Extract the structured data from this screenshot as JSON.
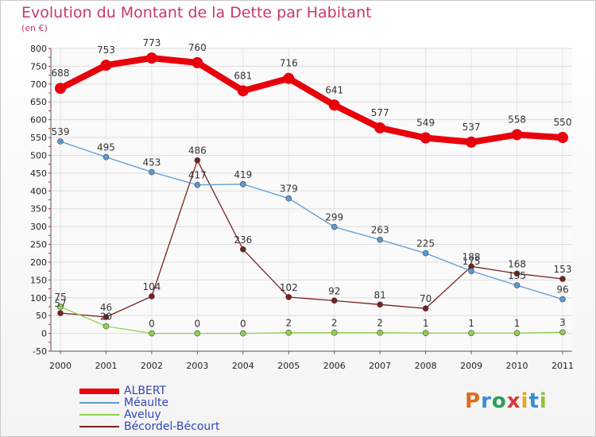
{
  "title": "Evolution du Montant de la Dette par Habitant",
  "subtitle": "(en €)",
  "logo_text": "Proxiti",
  "chart_data": {
    "type": "line",
    "x": [
      "2000",
      "2001",
      "2002",
      "2003",
      "2004",
      "2005",
      "2006",
      "2007",
      "2008",
      "2009",
      "2010",
      "2011"
    ],
    "ylim": [
      -50,
      800
    ],
    "yticks": [
      -50,
      0,
      50,
      100,
      150,
      200,
      250,
      300,
      350,
      400,
      450,
      500,
      550,
      600,
      650,
      700,
      750,
      800
    ],
    "grid": true,
    "legend_position": "bottom-left",
    "series": [
      {
        "name": "ALBERT",
        "color": "#e8000b",
        "values": [
          688,
          753,
          773,
          760,
          681,
          716,
          641,
          577,
          549,
          537,
          558,
          550
        ]
      },
      {
        "name": "Méaulte",
        "color": "#5b9bd5",
        "values": [
          539,
          495,
          453,
          417,
          419,
          379,
          299,
          263,
          225,
          175,
          135,
          96
        ]
      },
      {
        "name": "Aveluy",
        "color": "#8fd14f",
        "values": [
          75,
          20,
          0,
          0,
          0,
          2,
          2,
          2,
          1,
          1,
          1,
          3
        ]
      },
      {
        "name": "Bécordel-Bécourt",
        "color": "#7a1f1f",
        "values": [
          57,
          46,
          104,
          486,
          236,
          102,
          92,
          81,
          70,
          188,
          168,
          153
        ]
      }
    ]
  }
}
